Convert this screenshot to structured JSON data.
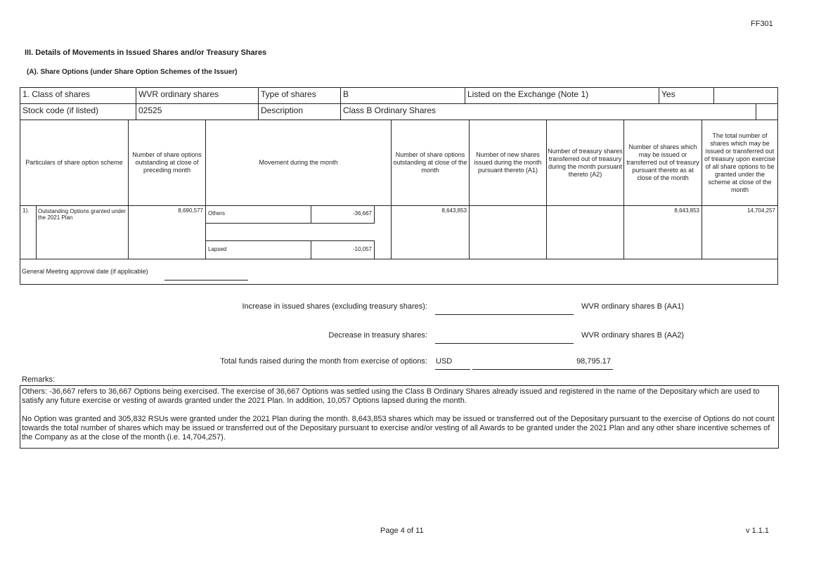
{
  "form_code": "FF301",
  "section_title": "III. Details of Movements in Issued Shares and/or Treasury Shares",
  "subsection_title": "(A). Share Options (under Share Option Schemes of the Issuer)",
  "info": {
    "class_label": "1. Class of shares",
    "class_value": "WVR ordinary shares",
    "type_label": "Type of shares",
    "type_value": "B",
    "listed_label": "Listed on the Exchange (Note 1)",
    "listed_value": "Yes",
    "stock_code_label": "Stock code (if listed)",
    "stock_code_value": "02525",
    "description_label": "Description",
    "description_value": "Class B Ordinary Shares"
  },
  "headers": [
    "Particulars of share option scheme",
    "Number of share options outstanding at close of preceding month",
    "Movement during the month",
    "Number of share options outstanding at close of the month",
    "Number of new shares issued during the month pursuant thereto (A1)",
    "Number of treasury shares transferred out of treasury during the month pursuant thereto (A2)",
    "Number of shares which may be issued or transferred out of treasury pursuant thereto as at close of the month",
    "The total number of shares which may be issued or transferred out of treasury upon exercise of all share options to be granted under the scheme at close of the month"
  ],
  "row": {
    "index": "1).",
    "particulars": "Outstanding Options granted under the 2021 Plan",
    "preceding": "8,690,577",
    "movements": [
      {
        "label": "Others",
        "value": "-36,667"
      },
      {
        "label": "Lapsed",
        "value": "-10,057"
      }
    ],
    "close": "8,643,853",
    "new_shares": "",
    "treasury": "",
    "may_issue": "8,643,853",
    "total": "14,704,257"
  },
  "gm_label": "General Meeting approval date (if applicable)",
  "summary": {
    "increase_label": "Increase in issued shares (excluding treasury shares):",
    "increase_suffix": "WVR ordinary shares B (AA1)",
    "decrease_label": "Decrease in treasury shares:",
    "decrease_suffix": "WVR ordinary shares B (AA2)",
    "funds_label": "Total funds raised during the month from exercise of options:",
    "funds_currency": "USD",
    "funds_value": "98,795.17"
  },
  "remarks_label": "Remarks:",
  "remarks": [
    "Others: -36,667 refers to 36,667 Options being exercised. The exercise of 36,667 Options was settled using the Class B Ordinary Shares already issued and registered in the name of the Depositary which are used to satisfy any future exercise or vesting of awards granted under the 2021 Plan. In addition, 10,057 Options lapsed during the month.",
    "No Option was granted and 305,832 RSUs were granted under the 2021 Plan during the month. 8,643,853 shares which may be issued or transferred out of the Depositary pursuant to the exercise of Options do not count towards the total number of shares which may be issued or transferred out of the Depositary pursuant to exercise and/or vesting of all Awards to be granted under the 2021 Plan and any other share incentive schemes of the Company as at the close of the month (i.e. 14,704,257)."
  ],
  "footer": {
    "page": "Page 4 of 11",
    "version": "v 1.1.1"
  }
}
